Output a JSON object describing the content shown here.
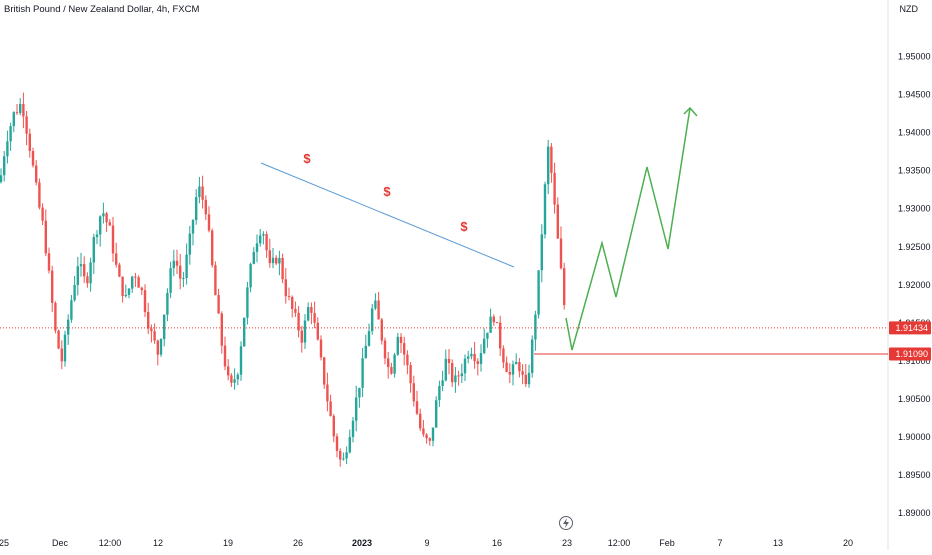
{
  "header": {
    "symbol_title": "British Pound / New Zealand Dollar, 4h, FXCM",
    "currency": "NZD"
  },
  "colors": {
    "up": "#26a69a",
    "down": "#ef5350",
    "trendline": "#5b9bd5",
    "projection": "#4caf50",
    "level": "#e53935",
    "grid": "#f0f3fa"
  },
  "chart_data": {
    "type": "candlestick",
    "timeframe": "4h",
    "ylim": [
      1.8875,
      1.9556
    ],
    "y_ticks": [
      "1.95000",
      "1.94500",
      "1.94000",
      "1.93500",
      "1.93000",
      "1.92500",
      "1.92000",
      "1.91500",
      "1.91000",
      "1.90500",
      "1.90000",
      "1.89500",
      "1.89000"
    ],
    "x_ticks": [
      {
        "label": "25",
        "bold": false
      },
      {
        "label": "Dec",
        "bold": false
      },
      {
        "label": "12:00",
        "bold": false
      },
      {
        "label": "12",
        "bold": false
      },
      {
        "label": "19",
        "bold": false
      },
      {
        "label": "26",
        "bold": false
      },
      {
        "label": "2023",
        "bold": true
      },
      {
        "label": "9",
        "bold": false
      },
      {
        "label": "16",
        "bold": false
      },
      {
        "label": "23",
        "bold": false
      },
      {
        "label": "12:00",
        "bold": false
      },
      {
        "label": "Feb",
        "bold": false
      },
      {
        "label": "7",
        "bold": false
      },
      {
        "label": "13",
        "bold": false
      },
      {
        "label": "20",
        "bold": false
      }
    ],
    "price_labels": [
      {
        "name": "current-price",
        "value": "1.91434",
        "color": "#e53935",
        "dotted": true
      },
      {
        "name": "support-level",
        "value": "1.91090",
        "color": "#e53935",
        "dotted": false
      }
    ],
    "annotations": [
      "$",
      "$",
      "$"
    ]
  }
}
